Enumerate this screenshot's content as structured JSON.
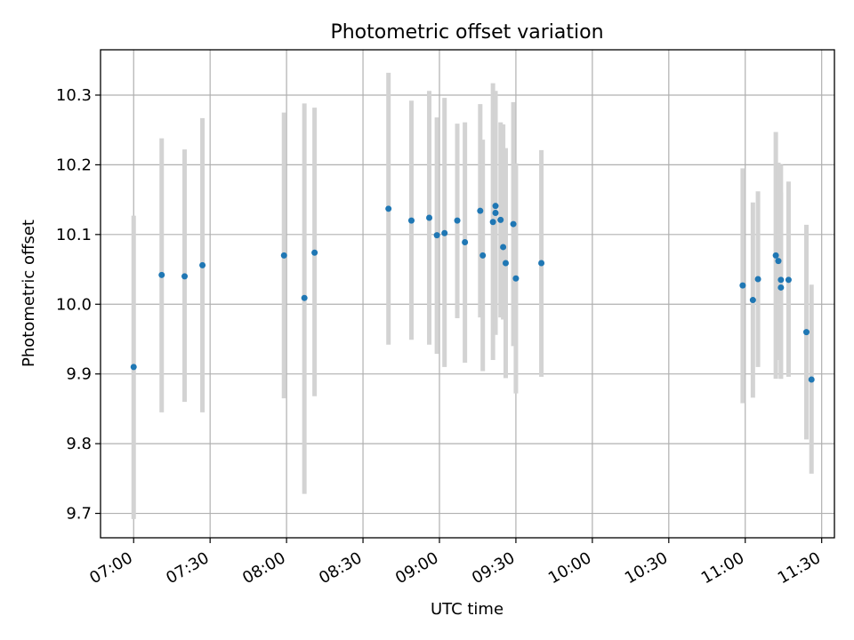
{
  "chart_data": {
    "type": "scatter",
    "title": "Photometric offset variation",
    "xlabel": "UTC time",
    "ylabel": "Photometric offset",
    "xlim": [
      "06:47",
      "11:35"
    ],
    "ylim": [
      9.665,
      10.365
    ],
    "x_ticks": [
      "07:00",
      "07:30",
      "08:00",
      "08:30",
      "09:00",
      "09:30",
      "10:00",
      "10:30",
      "11:00",
      "11:30"
    ],
    "y_ticks": [
      "9.7",
      "9.8",
      "9.9",
      "10.0",
      "10.1",
      "10.2",
      "10.3"
    ],
    "grid": true,
    "errorbar_color": "#d3d3d3",
    "point_color": "#1f77b4",
    "points": [
      {
        "x": "07:00",
        "y": 9.91,
        "yerr_low": 9.692,
        "yerr_high": 10.127
      },
      {
        "x": "07:11",
        "y": 10.042,
        "yerr_low": 9.845,
        "yerr_high": 10.238
      },
      {
        "x": "07:20",
        "y": 10.04,
        "yerr_low": 9.86,
        "yerr_high": 10.222
      },
      {
        "x": "07:27",
        "y": 10.056,
        "yerr_low": 9.845,
        "yerr_high": 10.267
      },
      {
        "x": "07:59",
        "y": 10.07,
        "yerr_low": 9.865,
        "yerr_high": 10.275
      },
      {
        "x": "08:07",
        "y": 10.009,
        "yerr_low": 9.728,
        "yerr_high": 10.288
      },
      {
        "x": "08:11",
        "y": 10.074,
        "yerr_low": 9.868,
        "yerr_high": 10.282
      },
      {
        "x": "08:40",
        "y": 10.137,
        "yerr_low": 9.942,
        "yerr_high": 10.332
      },
      {
        "x": "08:49",
        "y": 10.12,
        "yerr_low": 9.949,
        "yerr_high": 10.292
      },
      {
        "x": "08:56",
        "y": 10.124,
        "yerr_low": 9.942,
        "yerr_high": 10.306
      },
      {
        "x": "08:59",
        "y": 10.099,
        "yerr_low": 9.929,
        "yerr_high": 10.268
      },
      {
        "x": "09:02",
        "y": 10.102,
        "yerr_low": 9.91,
        "yerr_high": 10.296
      },
      {
        "x": "09:07",
        "y": 10.12,
        "yerr_low": 9.98,
        "yerr_high": 10.259
      },
      {
        "x": "09:10",
        "y": 10.089,
        "yerr_low": 9.916,
        "yerr_high": 10.261
      },
      {
        "x": "09:16",
        "y": 10.134,
        "yerr_low": 9.981,
        "yerr_high": 10.287
      },
      {
        "x": "09:17",
        "y": 10.07,
        "yerr_low": 9.904,
        "yerr_high": 10.236
      },
      {
        "x": "09:21",
        "y": 10.118,
        "yerr_low": 9.92,
        "yerr_high": 10.317
      },
      {
        "x": "09:22",
        "y": 10.131,
        "yerr_low": 9.956,
        "yerr_high": 10.306
      },
      {
        "x": "09:22",
        "y": 10.141,
        "yerr_low": 9.985,
        "yerr_high": 10.296
      },
      {
        "x": "09:24",
        "y": 10.121,
        "yerr_low": 9.981,
        "yerr_high": 10.261
      },
      {
        "x": "09:25",
        "y": 10.082,
        "yerr_low": 9.978,
        "yerr_high": 10.258
      },
      {
        "x": "09:26",
        "y": 10.059,
        "yerr_low": 9.894,
        "yerr_high": 10.224
      },
      {
        "x": "09:29",
        "y": 10.115,
        "yerr_low": 9.94,
        "yerr_high": 10.29
      },
      {
        "x": "09:30",
        "y": 10.037,
        "yerr_low": 9.872,
        "yerr_high": 10.202
      },
      {
        "x": "09:40",
        "y": 10.059,
        "yerr_low": 9.896,
        "yerr_high": 10.221
      },
      {
        "x": "10:59",
        "y": 10.027,
        "yerr_low": 9.858,
        "yerr_high": 10.195
      },
      {
        "x": "11:03",
        "y": 10.006,
        "yerr_low": 9.866,
        "yerr_high": 10.146
      },
      {
        "x": "11:05",
        "y": 10.036,
        "yerr_low": 9.91,
        "yerr_high": 10.162
      },
      {
        "x": "11:12",
        "y": 10.07,
        "yerr_low": 9.893,
        "yerr_high": 10.247
      },
      {
        "x": "11:13",
        "y": 10.062,
        "yerr_low": 9.92,
        "yerr_high": 10.203
      },
      {
        "x": "11:14",
        "y": 10.035,
        "yerr_low": 9.893,
        "yerr_high": 10.2
      },
      {
        "x": "11:14",
        "y": 10.024,
        "yerr_low": 9.893,
        "yerr_high": 10.16
      },
      {
        "x": "11:17",
        "y": 10.035,
        "yerr_low": 9.896,
        "yerr_high": 10.176
      },
      {
        "x": "11:24",
        "y": 9.96,
        "yerr_low": 9.806,
        "yerr_high": 10.114
      },
      {
        "x": "11:26",
        "y": 9.892,
        "yerr_low": 9.757,
        "yerr_high": 10.028
      }
    ]
  }
}
